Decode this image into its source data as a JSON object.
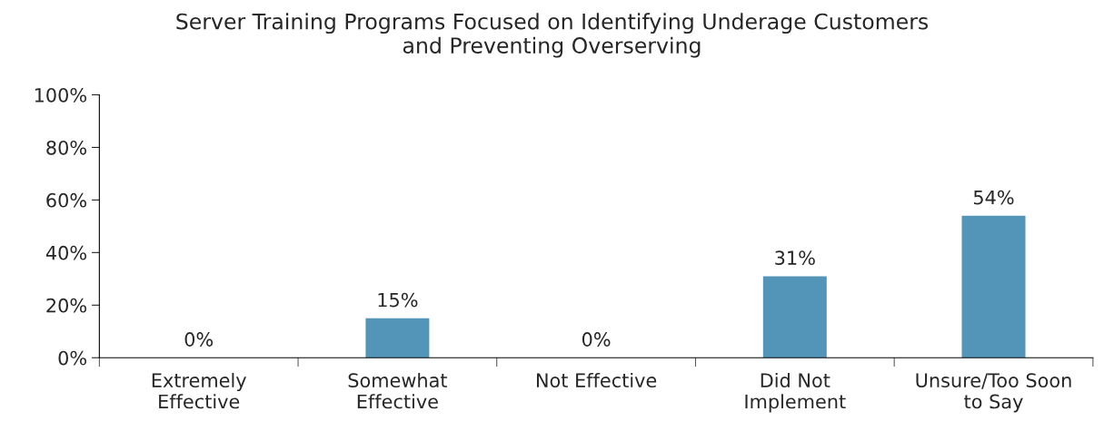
{
  "chart_data": {
    "type": "bar",
    "title": "Server Training Programs Focused on Identifying Underage Customers\nand Preventing Overserving",
    "categories": [
      "Extremely\nEffective",
      "Somewhat\nEffective",
      "Not Effective",
      "Did Not\nImplement",
      "Unsure/Too Soon\nto Say"
    ],
    "values": [
      0,
      15,
      0,
      31,
      54
    ],
    "color": "#5295b8",
    "value_labels": [
      "0%",
      "15%",
      "0%",
      "31%",
      "54%"
    ],
    "ylim": [
      0,
      100
    ],
    "yticks": [
      {
        "value": 0,
        "label": "0%"
      },
      {
        "value": 20,
        "label": "20%"
      },
      {
        "value": 40,
        "label": "40%"
      },
      {
        "value": 60,
        "label": "60%"
      },
      {
        "value": 80,
        "label": "80%"
      },
      {
        "value": 100,
        "label": "100%"
      }
    ],
    "grid": false,
    "legend": false
  }
}
